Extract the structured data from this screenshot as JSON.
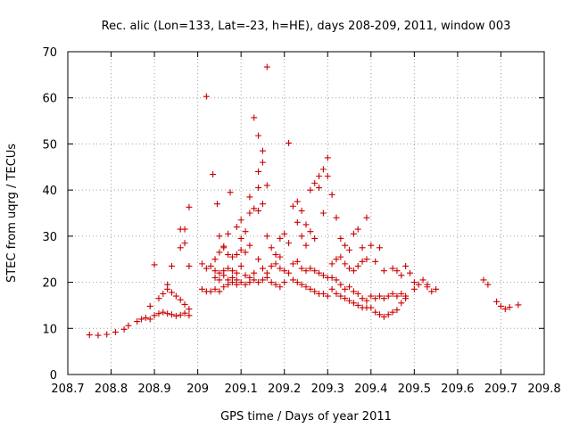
{
  "chart_data": {
    "type": "scatter",
    "title": "Rec. alic (Lon=133, Lat=-23, h=HE), days 208-209, 2011, window 003",
    "xlabel": "GPS time / Days of year 2011",
    "ylabel": "STEC from uqrg / TECUs",
    "xlim": [
      208.7,
      209.8
    ],
    "ylim": [
      0,
      70
    ],
    "x_ticks": [
      "208.7",
      "208.8",
      "208.9",
      "209",
      "209.1",
      "209.2",
      "209.3",
      "209.4",
      "209.5",
      "209.6",
      "209.7",
      "209.8"
    ],
    "y_ticks": [
      "0",
      "10",
      "20",
      "30",
      "40",
      "50",
      "60",
      "70"
    ],
    "grid": true,
    "legend": "none",
    "marker": "+",
    "color": "#cc0000",
    "points": [
      [
        208.75,
        8.6
      ],
      [
        208.77,
        8.5
      ],
      [
        208.79,
        8.7
      ],
      [
        208.81,
        9.2
      ],
      [
        208.83,
        9.8
      ],
      [
        208.84,
        10.6
      ],
      [
        208.86,
        11.5
      ],
      [
        208.87,
        12.0
      ],
      [
        208.88,
        12.3
      ],
      [
        208.89,
        12.0
      ],
      [
        208.9,
        12.8
      ],
      [
        208.91,
        13.2
      ],
      [
        208.92,
        13.5
      ],
      [
        208.93,
        13.2
      ],
      [
        208.94,
        13.0
      ],
      [
        208.95,
        12.7
      ],
      [
        208.96,
        12.9
      ],
      [
        208.97,
        13.3
      ],
      [
        208.98,
        12.8
      ],
      [
        208.89,
        14.8
      ],
      [
        208.91,
        16.5
      ],
      [
        208.92,
        17.5
      ],
      [
        208.93,
        18.5
      ],
      [
        208.93,
        19.5
      ],
      [
        208.94,
        17.8
      ],
      [
        208.95,
        17.0
      ],
      [
        208.96,
        16.2
      ],
      [
        208.97,
        15.2
      ],
      [
        208.98,
        14.2
      ],
      [
        208.9,
        23.8
      ],
      [
        208.94,
        23.5
      ],
      [
        208.96,
        27.5
      ],
      [
        208.97,
        28.5
      ],
      [
        208.96,
        31.5
      ],
      [
        208.97,
        31.5
      ],
      [
        208.98,
        36.3
      ],
      [
        208.98,
        23.5
      ],
      [
        209.01,
        24.0
      ],
      [
        209.02,
        23.0
      ],
      [
        209.03,
        23.5
      ],
      [
        209.04,
        22.5
      ],
      [
        209.05,
        22.0
      ],
      [
        209.06,
        22.5
      ],
      [
        209.07,
        23.0
      ],
      [
        209.08,
        22.5
      ],
      [
        209.09,
        22.0
      ],
      [
        209.1,
        23.5
      ],
      [
        209.01,
        18.5
      ],
      [
        209.02,
        18.0
      ],
      [
        209.03,
        18.0
      ],
      [
        209.04,
        18.5
      ],
      [
        209.05,
        18.0
      ],
      [
        209.06,
        19.0
      ],
      [
        209.07,
        19.5
      ],
      [
        209.08,
        20.0
      ],
      [
        209.09,
        19.5
      ],
      [
        209.1,
        20.0
      ],
      [
        209.11,
        19.5
      ],
      [
        209.12,
        20.0
      ],
      [
        209.13,
        20.5
      ],
      [
        209.14,
        20.0
      ],
      [
        209.15,
        20.5
      ],
      [
        209.16,
        21.0
      ],
      [
        209.17,
        20.0
      ],
      [
        209.18,
        19.5
      ],
      [
        209.19,
        19.0
      ],
      [
        209.2,
        20.0
      ],
      [
        209.04,
        21.0
      ],
      [
        209.05,
        20.5
      ],
      [
        209.06,
        21.5
      ],
      [
        209.07,
        20.5
      ],
      [
        209.08,
        21.0
      ],
      [
        209.09,
        20.5
      ],
      [
        209.11,
        21.5
      ],
      [
        209.12,
        21.0
      ],
      [
        209.13,
        22.0
      ],
      [
        209.04,
        25.0
      ],
      [
        209.05,
        26.5
      ],
      [
        209.06,
        27.5
      ],
      [
        209.07,
        26.0
      ],
      [
        209.08,
        25.5
      ],
      [
        209.09,
        26.0
      ],
      [
        209.1,
        27.0
      ],
      [
        209.11,
        26.5
      ],
      [
        209.12,
        28.0
      ],
      [
        209.05,
        30.0
      ],
      [
        209.07,
        30.5
      ],
      [
        209.09,
        32.0
      ],
      [
        209.1,
        29.5
      ],
      [
        209.11,
        31.0
      ],
      [
        209.12,
        35.0
      ],
      [
        209.13,
        36.0
      ],
      [
        209.02,
        60.3
      ],
      [
        209.035,
        43.4
      ],
      [
        209.045,
        37.0
      ],
      [
        209.06,
        27.8
      ],
      [
        209.075,
        39.5
      ],
      [
        209.1,
        33.5
      ],
      [
        209.12,
        38.5
      ],
      [
        209.13,
        55.7
      ],
      [
        209.14,
        51.8
      ],
      [
        209.15,
        48.5
      ],
      [
        209.14,
        44.0
      ],
      [
        209.15,
        46.0
      ],
      [
        209.16,
        41.0
      ],
      [
        209.16,
        66.7
      ],
      [
        209.14,
        40.5
      ],
      [
        209.14,
        35.5
      ],
      [
        209.15,
        37.0
      ],
      [
        209.16,
        30.0
      ],
      [
        209.17,
        27.5
      ],
      [
        209.18,
        26.0
      ],
      [
        209.19,
        25.5
      ],
      [
        209.19,
        29.5
      ],
      [
        209.2,
        30.5
      ],
      [
        209.21,
        28.5
      ],
      [
        209.14,
        25.0
      ],
      [
        209.15,
        23.0
      ],
      [
        209.16,
        22.0
      ],
      [
        209.17,
        23.5
      ],
      [
        209.18,
        24.0
      ],
      [
        209.19,
        23.0
      ],
      [
        209.2,
        22.5
      ],
      [
        209.21,
        22.0
      ],
      [
        209.21,
        50.2
      ],
      [
        209.22,
        36.5
      ],
      [
        209.23,
        37.5
      ],
      [
        209.24,
        35.5
      ],
      [
        209.25,
        32.5
      ],
      [
        209.26,
        31.0
      ],
      [
        209.27,
        29.5
      ],
      [
        209.23,
        33.0
      ],
      [
        209.24,
        30.0
      ],
      [
        209.25,
        28.0
      ],
      [
        209.26,
        40.0
      ],
      [
        209.27,
        41.5
      ],
      [
        209.28,
        43.0
      ],
      [
        209.29,
        44.5
      ],
      [
        209.3,
        43.0
      ],
      [
        209.3,
        47.0
      ],
      [
        209.31,
        39.0
      ],
      [
        209.28,
        40.5
      ],
      [
        209.29,
        35.0
      ],
      [
        209.22,
        24.0
      ],
      [
        209.23,
        24.5
      ],
      [
        209.24,
        23.0
      ],
      [
        209.25,
        22.5
      ],
      [
        209.26,
        23.0
      ],
      [
        209.27,
        22.5
      ],
      [
        209.28,
        22.0
      ],
      [
        209.29,
        21.5
      ],
      [
        209.3,
        21.0
      ],
      [
        209.22,
        20.5
      ],
      [
        209.23,
        20.0
      ],
      [
        209.24,
        19.5
      ],
      [
        209.25,
        19.0
      ],
      [
        209.26,
        18.5
      ],
      [
        209.27,
        18.0
      ],
      [
        209.28,
        17.5
      ],
      [
        209.29,
        17.5
      ],
      [
        209.3,
        17.0
      ],
      [
        209.31,
        18.5
      ],
      [
        209.32,
        17.5
      ],
      [
        209.33,
        17.0
      ],
      [
        209.34,
        16.5
      ],
      [
        209.35,
        16.0
      ],
      [
        209.36,
        15.5
      ],
      [
        209.37,
        15.0
      ],
      [
        209.38,
        14.5
      ],
      [
        209.39,
        14.5
      ],
      [
        209.31,
        24.0
      ],
      [
        209.32,
        25.0
      ],
      [
        209.33,
        25.5
      ],
      [
        209.34,
        24.0
      ],
      [
        209.35,
        23.0
      ],
      [
        209.36,
        22.5
      ],
      [
        209.37,
        23.5
      ],
      [
        209.38,
        24.5
      ],
      [
        209.39,
        25.0
      ],
      [
        209.32,
        34.0
      ],
      [
        209.33,
        29.5
      ],
      [
        209.34,
        28.0
      ],
      [
        209.35,
        27.0
      ],
      [
        209.36,
        30.5
      ],
      [
        209.37,
        31.5
      ],
      [
        209.38,
        27.5
      ],
      [
        209.39,
        34.0
      ],
      [
        209.4,
        28.0
      ],
      [
        209.31,
        21.0
      ],
      [
        209.32,
        20.5
      ],
      [
        209.33,
        19.5
      ],
      [
        209.34,
        18.5
      ],
      [
        209.35,
        19.0
      ],
      [
        209.36,
        18.0
      ],
      [
        209.37,
        17.5
      ],
      [
        209.38,
        16.5
      ],
      [
        209.39,
        16.0
      ],
      [
        209.4,
        14.5
      ],
      [
        209.41,
        13.5
      ],
      [
        209.42,
        13.0
      ],
      [
        209.43,
        12.5
      ],
      [
        209.44,
        13.0
      ],
      [
        209.45,
        13.5
      ],
      [
        209.46,
        14.0
      ],
      [
        209.47,
        15.5
      ],
      [
        209.48,
        16.5
      ],
      [
        209.4,
        17.0
      ],
      [
        209.41,
        16.5
      ],
      [
        209.42,
        17.0
      ],
      [
        209.43,
        16.5
      ],
      [
        209.44,
        17.0
      ],
      [
        209.45,
        17.5
      ],
      [
        209.46,
        17.0
      ],
      [
        209.47,
        17.5
      ],
      [
        209.48,
        17.0
      ],
      [
        209.41,
        24.5
      ],
      [
        209.42,
        27.5
      ],
      [
        209.43,
        22.5
      ],
      [
        209.45,
        23.0
      ],
      [
        209.46,
        22.5
      ],
      [
        209.47,
        21.5
      ],
      [
        209.48,
        23.5
      ],
      [
        209.49,
        22.0
      ],
      [
        209.5,
        18.5
      ],
      [
        209.51,
        19.5
      ],
      [
        209.52,
        20.5
      ],
      [
        209.53,
        19.0
      ],
      [
        209.54,
        18.0
      ],
      [
        209.55,
        18.5
      ],
      [
        209.5,
        20.0
      ],
      [
        209.53,
        19.5
      ],
      [
        209.66,
        20.5
      ],
      [
        209.67,
        19.5
      ],
      [
        209.69,
        15.8
      ],
      [
        209.7,
        14.8
      ],
      [
        209.71,
        14.2
      ],
      [
        209.72,
        14.6
      ],
      [
        209.74,
        15.1
      ]
    ]
  }
}
